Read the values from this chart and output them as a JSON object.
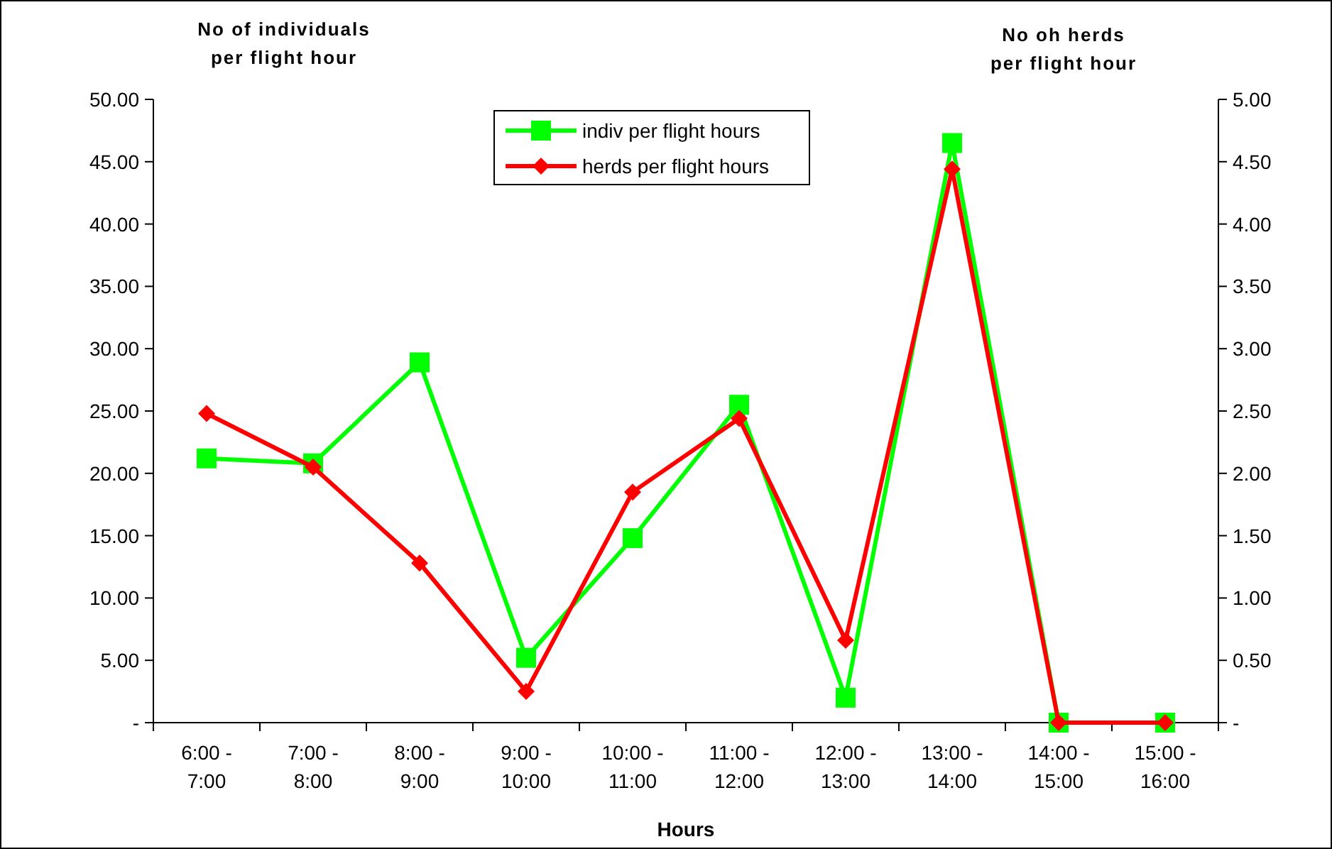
{
  "chart_data": {
    "type": "line",
    "xlabel": "Hours",
    "ylabel": "No of individuals per flight hour",
    "y2label": "No oh herds per flight hour",
    "categories": [
      "6:00 -\n7:00",
      "7:00 -\n8:00",
      "8:00 -\n9:00",
      "9:00 -\n10:00",
      "10:00 -\n11:00",
      "11:00 -\n12:00",
      "12:00 -\n13:00",
      "13:00 -\n14:00",
      "14:00 -\n15:00",
      "15:00 -\n16:00"
    ],
    "series": [
      {
        "name": "indiv per flight hours",
        "color": "#00ff00",
        "marker": "square",
        "values": [
          21.2,
          20.8,
          28.9,
          5.2,
          14.8,
          25.5,
          2.0,
          46.5,
          0,
          0
        ]
      },
      {
        "name": "herds per flight hours",
        "color": "#ff0000",
        "marker": "diamond",
        "axis": "y2",
        "values": [
          2.48,
          2.05,
          1.28,
          0.25,
          1.85,
          2.44,
          0.66,
          4.44,
          0,
          0
        ]
      }
    ],
    "ylim": [
      0,
      50
    ],
    "yticks": [
      {
        "value": 0,
        "label": "-"
      },
      {
        "value": 5,
        "label": "5.00"
      },
      {
        "value": 10,
        "label": "10.00"
      },
      {
        "value": 15,
        "label": "15.00"
      },
      {
        "value": 20,
        "label": "20.00"
      },
      {
        "value": 25,
        "label": "25.00"
      },
      {
        "value": 30,
        "label": "30.00"
      },
      {
        "value": 35,
        "label": "35.00"
      },
      {
        "value": 40,
        "label": "40.00"
      },
      {
        "value": 45,
        "label": "45.00"
      },
      {
        "value": 50,
        "label": "50.00"
      }
    ],
    "y2lim": [
      0,
      5
    ],
    "y2ticks": [
      {
        "value": 0,
        "label": "-"
      },
      {
        "value": 0.5,
        "label": "0.50"
      },
      {
        "value": 1,
        "label": "1.00"
      },
      {
        "value": 1.5,
        "label": "1.50"
      },
      {
        "value": 2,
        "label": "2.00"
      },
      {
        "value": 2.5,
        "label": "2.50"
      },
      {
        "value": 3,
        "label": "3.00"
      },
      {
        "value": 3.5,
        "label": "3.50"
      },
      {
        "value": 4,
        "label": "4.00"
      },
      {
        "value": 4.5,
        "label": "4.50"
      },
      {
        "value": 5,
        "label": "5.00"
      }
    ],
    "grid": false,
    "legend": "top",
    "line_style": "solid"
  }
}
